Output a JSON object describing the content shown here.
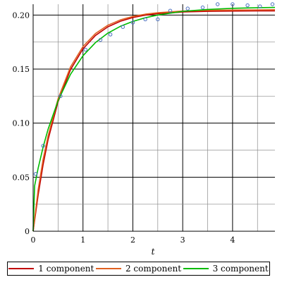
{
  "chart_data": {
    "type": "line",
    "title": "",
    "xlabel": "t",
    "ylabel": "",
    "xlim": [
      0,
      4.85
    ],
    "ylim": [
      0,
      0.21
    ],
    "grid": true,
    "legend_position": "bottom",
    "x_ticks": [
      0,
      1,
      2,
      3,
      4
    ],
    "x_tick_labels": [
      "0",
      "1",
      "2",
      "3",
      "4"
    ],
    "y_ticks": [
      0,
      0.05,
      0.1,
      0.15,
      0.2
    ],
    "y_tick_labels": [
      "0",
      "0.05",
      "0.10",
      "0.15",
      "0.20"
    ],
    "series": [
      {
        "name": "1 component",
        "color": "#c00000",
        "style": "line",
        "x": [
          0,
          0.1,
          0.2,
          0.3,
          0.5,
          0.75,
          1.0,
          1.25,
          1.5,
          1.75,
          2.0,
          2.25,
          2.5,
          3.0,
          3.5,
          4.0,
          4.5,
          4.85
        ],
        "y": [
          0,
          0.0335,
          0.0615,
          0.0847,
          0.1198,
          0.1495,
          0.1687,
          0.1811,
          0.1891,
          0.1943,
          0.1977,
          0.1999,
          0.2013,
          0.2028,
          0.2034,
          0.2037,
          0.2039,
          0.2039
        ]
      },
      {
        "name": "2 component",
        "color": "#e06020",
        "style": "line",
        "x": [
          0,
          0.1,
          0.2,
          0.3,
          0.5,
          0.75,
          1.0,
          1.25,
          1.5,
          1.75,
          2.0,
          2.25,
          2.5,
          3.0,
          3.5,
          4.0,
          4.5,
          4.85
        ],
        "y": [
          0,
          0.0385,
          0.0665,
          0.0882,
          0.1227,
          0.152,
          0.1709,
          0.1829,
          0.1906,
          0.1955,
          0.1987,
          0.2008,
          0.2022,
          0.2037,
          0.2043,
          0.2046,
          0.2048,
          0.2049
        ]
      },
      {
        "name": "3 component",
        "color": "#00bb00",
        "style": "line",
        "x": [
          0,
          0.03,
          0.1,
          0.2,
          0.3,
          0.5,
          0.75,
          1.0,
          1.25,
          1.5,
          1.75,
          2.0,
          2.25,
          2.5,
          3.0,
          3.5,
          4.0,
          4.5,
          4.85
        ],
        "y": [
          0,
          0.042,
          0.0583,
          0.0777,
          0.0944,
          0.1208,
          0.1452,
          0.1623,
          0.1745,
          0.1833,
          0.1896,
          0.1941,
          0.1975,
          0.2,
          0.2034,
          0.2052,
          0.2062,
          0.2068,
          0.207
        ]
      },
      {
        "name": "",
        "color": "#4a6fc0",
        "style": "points",
        "x": [
          0.05,
          0.2,
          0.55,
          1.05,
          1.35,
          1.55,
          1.8,
          2.0,
          2.25,
          2.5,
          2.75,
          3.1,
          3.4,
          3.7,
          4.0,
          4.3,
          4.55,
          4.8
        ],
        "y": [
          0.053,
          0.079,
          0.125,
          0.168,
          0.177,
          0.182,
          0.189,
          0.193,
          0.196,
          0.196,
          0.204,
          0.206,
          0.207,
          0.21,
          0.21,
          0.209,
          0.208,
          0.21
        ]
      }
    ]
  },
  "legend": {
    "items": [
      {
        "label": "1 component",
        "color": "#c00000"
      },
      {
        "label": "2 component",
        "color": "#e06020"
      },
      {
        "label": "3 component",
        "color": "#00bb00"
      }
    ]
  }
}
